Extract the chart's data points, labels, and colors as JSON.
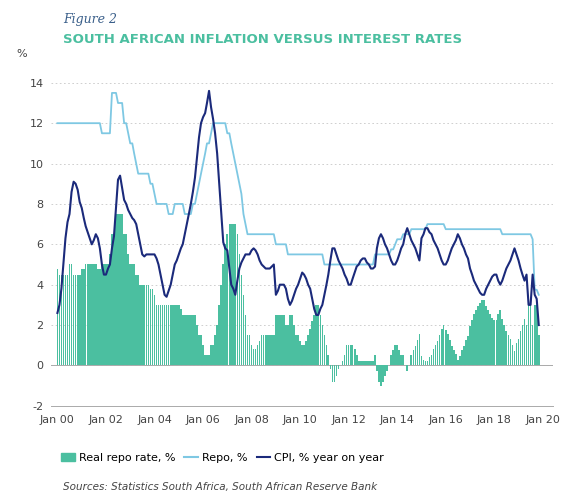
{
  "title_italic": "Figure 2",
  "title_main": "SOUTH AFRICAN INFLATION VERSUS INTEREST RATES",
  "ylabel_pct": "%",
  "source_text": "Sources: Statistics South Africa, South African Reserve Bank",
  "ylim": [
    -2,
    15
  ],
  "yticks": [
    -2,
    0,
    2,
    4,
    6,
    8,
    10,
    12,
    14
  ],
  "color_bar": "#4bbfa0",
  "color_repo": "#7ec8e3",
  "color_cpi": "#1b2a7b",
  "title_italic_color": "#3a5f8a",
  "title_main_color": "#4bbfa0",
  "repo_data": [
    12.0,
    12.0,
    12.0,
    12.0,
    12.0,
    12.0,
    12.0,
    12.0,
    12.0,
    12.0,
    12.0,
    12.0,
    12.0,
    12.0,
    12.0,
    12.0,
    12.0,
    12.0,
    12.0,
    12.0,
    12.0,
    12.0,
    11.5,
    11.5,
    11.5,
    11.5,
    11.5,
    13.5,
    13.5,
    13.5,
    13.0,
    13.0,
    13.0,
    12.0,
    12.0,
    11.5,
    11.0,
    11.0,
    10.5,
    10.0,
    9.5,
    9.5,
    9.5,
    9.5,
    9.5,
    9.5,
    9.0,
    9.0,
    8.5,
    8.0,
    8.0,
    8.0,
    8.0,
    8.0,
    8.0,
    7.5,
    7.5,
    7.5,
    8.0,
    8.0,
    8.0,
    8.0,
    8.0,
    7.5,
    7.5,
    7.5,
    7.5,
    8.0,
    8.0,
    8.5,
    9.0,
    9.5,
    10.0,
    10.5,
    11.0,
    11.0,
    11.5,
    12.0,
    12.0,
    12.0,
    12.0,
    12.0,
    12.0,
    12.0,
    11.5,
    11.5,
    11.0,
    10.5,
    10.0,
    9.5,
    9.0,
    8.5,
    7.5,
    7.0,
    6.5,
    6.5,
    6.5,
    6.5,
    6.5,
    6.5,
    6.5,
    6.5,
    6.5,
    6.5,
    6.5,
    6.5,
    6.5,
    6.5,
    6.0,
    6.0,
    6.0,
    6.0,
    6.0,
    6.0,
    5.5,
    5.5,
    5.5,
    5.5,
    5.5,
    5.5,
    5.5,
    5.5,
    5.5,
    5.5,
    5.5,
    5.5,
    5.5,
    5.5,
    5.5,
    5.5,
    5.5,
    5.5,
    5.0,
    5.0,
    5.0,
    5.0,
    5.0,
    5.0,
    5.0,
    5.0,
    5.0,
    5.0,
    5.0,
    5.0,
    5.0,
    5.0,
    5.0,
    5.0,
    5.0,
    5.0,
    5.0,
    5.0,
    5.0,
    5.0,
    5.0,
    5.0,
    5.0,
    5.5,
    5.5,
    5.5,
    5.5,
    5.5,
    5.5,
    5.5,
    5.5,
    5.75,
    5.75,
    6.0,
    6.25,
    6.25,
    6.25,
    6.5,
    6.5,
    6.5,
    6.5,
    6.75,
    6.75,
    6.75,
    6.75,
    6.75,
    6.75,
    6.75,
    6.75,
    7.0,
    7.0,
    7.0,
    7.0,
    7.0,
    7.0,
    7.0,
    7.0,
    7.0,
    6.75,
    6.75,
    6.75,
    6.75,
    6.75,
    6.75,
    6.75,
    6.75,
    6.75,
    6.75,
    6.75,
    6.75,
    6.75,
    6.75,
    6.75,
    6.75,
    6.75,
    6.75,
    6.75,
    6.75,
    6.75,
    6.75,
    6.75,
    6.75,
    6.75,
    6.75,
    6.75,
    6.75,
    6.5,
    6.5,
    6.5,
    6.5,
    6.5,
    6.5,
    6.5,
    6.5,
    6.5,
    6.5,
    6.5,
    6.5,
    6.5,
    6.5,
    6.5,
    6.25,
    3.75,
    3.75,
    3.5
  ],
  "cpi_data": [
    2.6,
    3.0,
    3.8,
    5.1,
    6.3,
    7.1,
    7.5,
    8.6,
    9.1,
    9.0,
    8.7,
    8.1,
    7.8,
    7.3,
    6.9,
    6.6,
    6.3,
    6.0,
    6.2,
    6.5,
    6.3,
    5.8,
    5.0,
    4.5,
    4.5,
    4.8,
    5.0,
    5.8,
    6.4,
    7.8,
    9.2,
    9.4,
    8.8,
    8.2,
    8.0,
    7.7,
    7.5,
    7.3,
    7.2,
    7.0,
    6.5,
    6.0,
    5.5,
    5.4,
    5.5,
    5.5,
    5.5,
    5.5,
    5.5,
    5.3,
    5.0,
    4.5,
    4.0,
    3.5,
    3.4,
    3.7,
    4.0,
    4.5,
    5.0,
    5.2,
    5.5,
    5.8,
    6.0,
    6.5,
    7.0,
    7.5,
    8.0,
    8.6,
    9.3,
    10.3,
    11.3,
    12.0,
    12.3,
    12.5,
    13.0,
    13.6,
    12.8,
    12.2,
    11.5,
    10.5,
    9.0,
    7.5,
    6.1,
    5.8,
    5.7,
    4.8,
    4.0,
    3.8,
    3.5,
    4.2,
    4.8,
    5.1,
    5.3,
    5.5,
    5.5,
    5.5,
    5.7,
    5.8,
    5.7,
    5.5,
    5.2,
    5.0,
    4.9,
    4.8,
    4.8,
    4.8,
    4.9,
    5.0,
    3.5,
    3.7,
    4.0,
    4.0,
    4.0,
    3.8,
    3.3,
    3.0,
    3.2,
    3.5,
    3.8,
    4.0,
    4.3,
    4.6,
    4.5,
    4.3,
    4.0,
    3.8,
    3.3,
    2.8,
    2.5,
    2.5,
    2.8,
    3.0,
    3.5,
    4.0,
    4.5,
    5.2,
    5.8,
    5.8,
    5.5,
    5.2,
    5.0,
    4.8,
    4.5,
    4.3,
    4.0,
    4.0,
    4.3,
    4.6,
    4.9,
    5.0,
    5.2,
    5.3,
    5.3,
    5.1,
    5.0,
    4.8,
    4.8,
    4.9,
    5.8,
    6.3,
    6.5,
    6.3,
    6.0,
    5.8,
    5.5,
    5.2,
    5.0,
    5.0,
    5.2,
    5.5,
    5.8,
    6.0,
    6.5,
    6.8,
    6.5,
    6.2,
    6.0,
    5.8,
    5.5,
    5.2,
    6.3,
    6.5,
    6.8,
    6.8,
    6.6,
    6.5,
    6.2,
    6.0,
    5.8,
    5.5,
    5.2,
    5.0,
    5.0,
    5.2,
    5.5,
    5.8,
    6.0,
    6.2,
    6.5,
    6.3,
    6.0,
    5.8,
    5.5,
    5.3,
    4.8,
    4.5,
    4.2,
    4.0,
    3.8,
    3.6,
    3.5,
    3.5,
    3.8,
    4.0,
    4.2,
    4.4,
    4.5,
    4.5,
    4.2,
    4.0,
    4.2,
    4.5,
    4.8,
    5.0,
    5.2,
    5.5,
    5.8,
    5.5,
    5.2,
    4.8,
    4.5,
    4.2,
    4.5,
    3.0,
    3.0,
    4.5,
    3.5,
    3.3,
    2.0
  ],
  "real_repo_data": [
    4.8,
    4.5,
    4.5,
    4.5,
    4.5,
    4.5,
    5.0,
    5.0,
    4.5,
    4.5,
    4.5,
    4.5,
    4.8,
    4.8,
    5.0,
    5.0,
    5.0,
    5.0,
    5.0,
    5.0,
    4.8,
    4.8,
    5.0,
    5.0,
    5.0,
    5.0,
    5.5,
    6.5,
    6.5,
    7.5,
    7.5,
    7.5,
    7.5,
    6.5,
    6.5,
    5.5,
    5.0,
    5.0,
    5.0,
    4.5,
    4.5,
    4.0,
    4.0,
    4.0,
    4.0,
    4.0,
    3.8,
    3.8,
    3.5,
    3.0,
    3.0,
    3.0,
    3.0,
    3.0,
    3.0,
    3.0,
    3.0,
    3.0,
    3.0,
    3.0,
    3.0,
    2.8,
    2.5,
    2.5,
    2.5,
    2.5,
    2.5,
    2.5,
    2.5,
    2.0,
    1.5,
    1.5,
    1.0,
    0.5,
    0.5,
    0.5,
    1.0,
    1.0,
    1.5,
    2.0,
    3.0,
    4.0,
    5.0,
    6.0,
    6.5,
    7.0,
    7.0,
    7.0,
    7.0,
    6.5,
    5.5,
    4.5,
    3.5,
    2.5,
    1.5,
    1.5,
    1.0,
    0.8,
    0.8,
    1.0,
    1.2,
    1.5,
    1.5,
    1.5,
    1.5,
    1.5,
    1.5,
    1.5,
    2.5,
    2.5,
    2.5,
    2.5,
    2.5,
    2.0,
    2.0,
    2.5,
    2.5,
    2.0,
    1.5,
    1.5,
    1.2,
    1.0,
    1.0,
    1.2,
    1.5,
    1.8,
    2.2,
    2.5,
    3.0,
    3.0,
    2.5,
    2.0,
    1.5,
    1.0,
    0.5,
    -0.2,
    -0.8,
    -0.8,
    -0.5,
    -0.2,
    0.0,
    0.2,
    0.5,
    1.0,
    1.0,
    1.0,
    1.0,
    0.8,
    0.5,
    0.2,
    0.2,
    0.2,
    0.2,
    0.2,
    0.2,
    0.2,
    0.2,
    0.5,
    -0.3,
    -0.8,
    -1.0,
    -0.8,
    -0.5,
    -0.3,
    0.0,
    0.5,
    0.75,
    1.0,
    1.0,
    0.75,
    0.5,
    0.5,
    0.0,
    -0.3,
    0.0,
    0.5,
    0.75,
    0.95,
    1.25,
    1.55,
    0.45,
    0.25,
    0.2,
    0.2,
    0.4,
    0.5,
    0.8,
    1.0,
    1.2,
    1.5,
    1.8,
    2.0,
    1.75,
    1.55,
    1.25,
    0.95,
    0.75,
    0.55,
    0.25,
    0.45,
    0.75,
    0.95,
    1.25,
    1.45,
    1.95,
    2.25,
    2.55,
    2.75,
    2.95,
    3.1,
    3.25,
    3.25,
    2.95,
    2.75,
    2.55,
    2.35,
    2.25,
    2.25,
    2.55,
    2.75,
    2.3,
    2.0,
    1.7,
    1.5,
    1.3,
    1.0,
    0.7,
    1.1,
    1.3,
    1.7,
    2.0,
    2.3,
    2.0,
    3.25,
    3.25,
    2.0,
    3.0,
    3.0,
    1.5
  ]
}
